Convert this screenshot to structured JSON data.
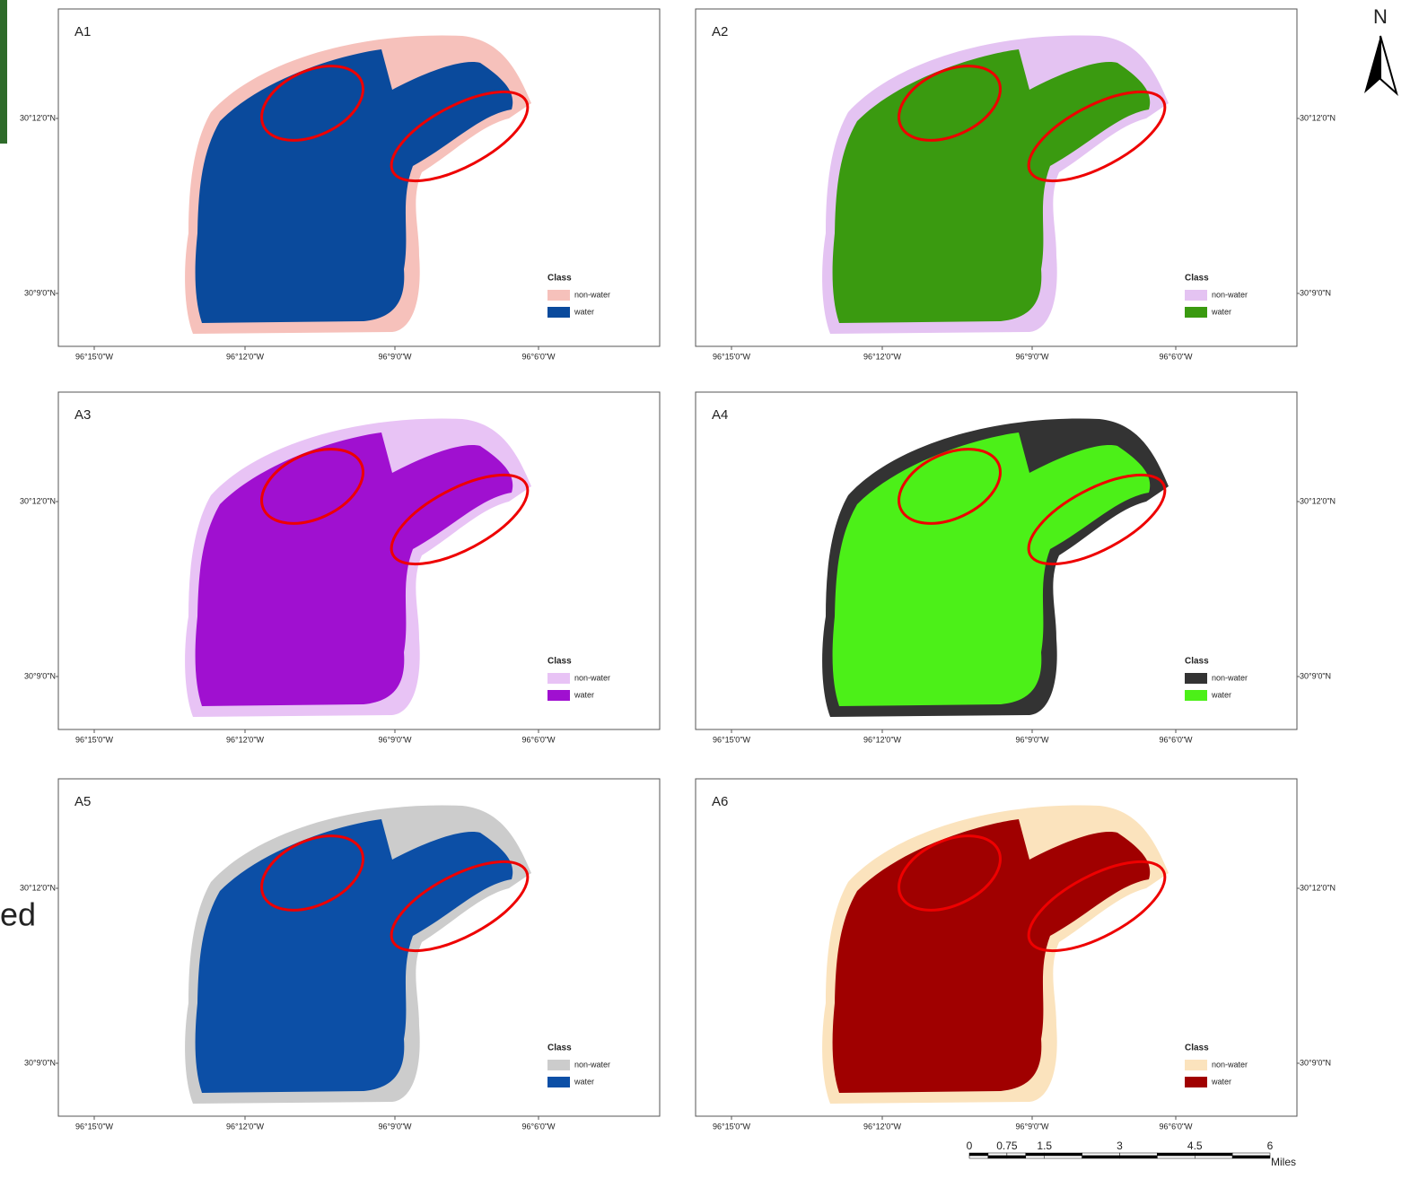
{
  "panels": [
    {
      "label": "A1",
      "legend_title": "Class",
      "legend": [
        {
          "name": "non-water",
          "color": "#f6c1bb"
        },
        {
          "name": "water",
          "color": "#0a4a9c"
        }
      ]
    },
    {
      "label": "A2",
      "legend_title": "Class",
      "legend": [
        {
          "name": "non-water",
          "color": "#e4c3f2"
        },
        {
          "name": "water",
          "color": "#3a9a10"
        }
      ]
    },
    {
      "label": "A3",
      "legend_title": "Class",
      "legend": [
        {
          "name": "non-water",
          "color": "#e8c3f5"
        },
        {
          "name": "water",
          "color": "#a010d0"
        }
      ]
    },
    {
      "label": "A4",
      "legend_title": "Class",
      "legend": [
        {
          "name": "non-water",
          "color": "#333333"
        },
        {
          "name": "water",
          "color": "#4cf018"
        }
      ]
    },
    {
      "label": "A5",
      "legend_title": "Class",
      "legend": [
        {
          "name": "non-water",
          "color": "#cccccc"
        },
        {
          "name": "water",
          "color": "#0c4fa6"
        }
      ]
    },
    {
      "label": "A6",
      "legend_title": "Class",
      "legend": [
        {
          "name": "non-water",
          "color": "#fbe3bd"
        },
        {
          "name": "water",
          "color": "#a00000"
        }
      ]
    }
  ],
  "lon_labels": [
    "96°15'0\"W",
    "96°12'0\"W",
    "96°9'0\"W",
    "96°6'0\"W"
  ],
  "lat_labels": [
    "30°12'0\"N",
    "30°9'0\"N"
  ],
  "north": "N",
  "scale_bar": {
    "ticks": [
      "0",
      "0.75",
      "1.5",
      "3",
      "4.5",
      "6"
    ],
    "unit": "Miles"
  },
  "fragment": "ed"
}
